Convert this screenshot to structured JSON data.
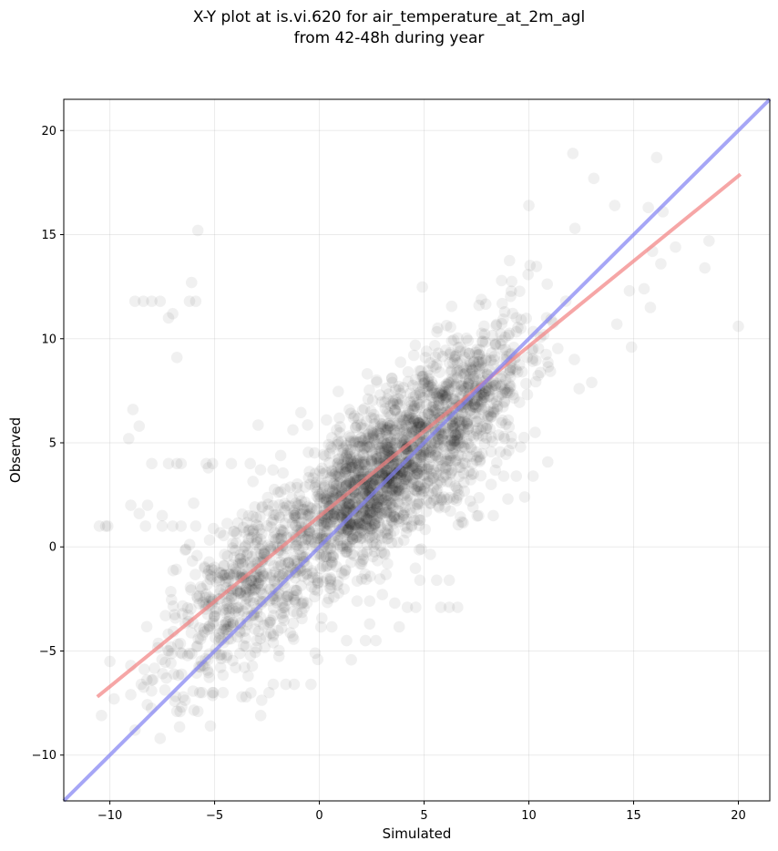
{
  "title_line1": "X-Y plot at is.vi.620 for air_temperature_at_2m_agl",
  "title_line2": "from 42-48h during year",
  "chart_data": {
    "type": "scatter",
    "xlabel": "Simulated",
    "ylabel": "Observed",
    "xlim": [
      -12.2,
      21.5
    ],
    "ylim": [
      -12.2,
      21.5
    ],
    "xticks": [
      -10,
      -5,
      0,
      5,
      10,
      15,
      20
    ],
    "yticks": [
      -10,
      -5,
      0,
      5,
      10,
      15,
      20
    ],
    "xtick_labels": [
      "−10",
      "−5",
      "0",
      "5",
      "10",
      "15",
      "20"
    ],
    "ytick_labels": [
      "−10",
      "−5",
      "0",
      "5",
      "10",
      "15",
      "20"
    ],
    "grid": true,
    "point_color": "#000000",
    "point_alpha": 0.06,
    "outlier_points": [
      {
        "x": -8.8,
        "y": 11.8
      },
      {
        "x": -8.4,
        "y": 11.8
      },
      {
        "x": -8.0,
        "y": 11.8
      },
      {
        "x": -7.6,
        "y": 11.8
      },
      {
        "x": -6.2,
        "y": 11.8
      },
      {
        "x": -5.9,
        "y": 11.8
      },
      {
        "x": -7.2,
        "y": 11.0
      },
      {
        "x": -7.0,
        "y": 11.2
      },
      {
        "x": -6.8,
        "y": 9.1
      },
      {
        "x": -6.1,
        "y": 12.7
      },
      {
        "x": -5.8,
        "y": 15.2
      },
      {
        "x": -8.9,
        "y": 6.6
      },
      {
        "x": -8.6,
        "y": 5.8
      },
      {
        "x": -9.1,
        "y": 5.2
      },
      {
        "x": -10.5,
        "y": 1.0
      },
      {
        "x": -10.2,
        "y": 1.0
      },
      {
        "x": -10.1,
        "y": 1.0
      },
      {
        "x": -8.3,
        "y": 1.0
      },
      {
        "x": -7.5,
        "y": 1.0
      },
      {
        "x": -7.0,
        "y": 1.0
      },
      {
        "x": -6.6,
        "y": 1.0
      },
      {
        "x": -5.9,
        "y": 1.0
      },
      {
        "x": -9.0,
        "y": 2.0
      },
      {
        "x": -8.6,
        "y": 1.6
      },
      {
        "x": -8.2,
        "y": 2.0
      },
      {
        "x": -7.5,
        "y": 1.5
      },
      {
        "x": -6.0,
        "y": 2.1
      },
      {
        "x": -8.0,
        "y": 4.0
      },
      {
        "x": -7.2,
        "y": 4.0
      },
      {
        "x": -6.6,
        "y": 4.0
      },
      {
        "x": -5.4,
        "y": 4.0
      },
      {
        "x": -5.1,
        "y": 4.0
      },
      {
        "x": -4.2,
        "y": 4.0
      },
      {
        "x": -3.3,
        "y": 4.0
      },
      {
        "x": -5.3,
        "y": 3.8
      },
      {
        "x": -6.8,
        "y": 4.0
      },
      {
        "x": 12.1,
        "y": 18.9
      },
      {
        "x": 16.1,
        "y": 18.7
      },
      {
        "x": 13.1,
        "y": 17.7
      },
      {
        "x": 15.7,
        "y": 16.3
      },
      {
        "x": 14.1,
        "y": 16.4
      },
      {
        "x": 10.0,
        "y": 16.4
      },
      {
        "x": 16.4,
        "y": 16.1
      },
      {
        "x": 12.2,
        "y": 15.3
      },
      {
        "x": 17.0,
        "y": 14.4
      },
      {
        "x": 15.9,
        "y": 14.2
      },
      {
        "x": 18.6,
        "y": 14.7
      },
      {
        "x": 18.4,
        "y": 13.4
      },
      {
        "x": 16.3,
        "y": 13.6
      },
      {
        "x": 15.5,
        "y": 12.4
      },
      {
        "x": 14.8,
        "y": 12.3
      },
      {
        "x": 15.8,
        "y": 11.5
      },
      {
        "x": 20.0,
        "y": 10.6
      },
      {
        "x": 14.9,
        "y": 9.6
      },
      {
        "x": 14.2,
        "y": 10.7
      },
      {
        "x": 13.0,
        "y": 7.9
      },
      {
        "x": 12.4,
        "y": 7.6
      },
      {
        "x": 10.2,
        "y": 3.4
      },
      {
        "x": 9.4,
        "y": 3.4
      },
      {
        "x": 8.8,
        "y": 3.4
      },
      {
        "x": 8.2,
        "y": 3.0
      },
      {
        "x": 9.6,
        "y": 4.8
      },
      {
        "x": 10.3,
        "y": 5.5
      },
      {
        "x": 9.0,
        "y": 2.3
      },
      {
        "x": 9.8,
        "y": 2.4
      },
      {
        "x": 8.3,
        "y": 1.5
      },
      {
        "x": 7.6,
        "y": 1.5
      },
      {
        "x": 7.2,
        "y": 2.2
      },
      {
        "x": 6.9,
        "y": 3.1
      },
      {
        "x": 5.6,
        "y": 2.3
      },
      {
        "x": 6.4,
        "y": 2.3
      },
      {
        "x": 6.8,
        "y": 1.2
      },
      {
        "x": 4.2,
        "y": -2.9
      },
      {
        "x": 4.6,
        "y": -2.9
      },
      {
        "x": 5.8,
        "y": -2.9
      },
      {
        "x": 6.2,
        "y": -2.9
      },
      {
        "x": 6.6,
        "y": -2.9
      },
      {
        "x": 3.6,
        "y": -2.7
      },
      {
        "x": 4.8,
        "y": -1.6
      },
      {
        "x": 5.6,
        "y": -1.6
      },
      {
        "x": 6.2,
        "y": -1.6
      },
      {
        "x": 2.4,
        "y": -2.6
      },
      {
        "x": 1.8,
        "y": -2.6
      },
      {
        "x": 2.7,
        "y": -4.5
      },
      {
        "x": 2.2,
        "y": -4.5
      },
      {
        "x": 1.3,
        "y": -4.5
      },
      {
        "x": 2.4,
        "y": -3.7
      },
      {
        "x": -0.4,
        "y": -6.6
      },
      {
        "x": -1.2,
        "y": -6.6
      },
      {
        "x": -1.6,
        "y": -6.6
      },
      {
        "x": -2.2,
        "y": -6.6
      },
      {
        "x": -2.4,
        "y": -7.0
      },
      {
        "x": -3.5,
        "y": -7.2
      },
      {
        "x": -3.7,
        "y": -7.2
      },
      {
        "x": -4.6,
        "y": -7.0
      },
      {
        "x": -5.1,
        "y": -7.0
      },
      {
        "x": -5.6,
        "y": -7.0
      },
      {
        "x": -5.8,
        "y": -7.9
      },
      {
        "x": -5.2,
        "y": -8.6
      },
      {
        "x": -6.8,
        "y": -7.9
      },
      {
        "x": -7.6,
        "y": -9.2
      },
      {
        "x": -8.8,
        "y": -8.8
      },
      {
        "x": -10.4,
        "y": -8.1
      },
      {
        "x": -9.8,
        "y": -7.3
      },
      {
        "x": -9.0,
        "y": -7.1
      },
      {
        "x": -10.0,
        "y": -5.5
      },
      {
        "x": -9.0,
        "y": -5.7
      },
      {
        "x": -8.5,
        "y": -6.6
      },
      {
        "x": -8.0,
        "y": -6.4
      },
      {
        "x": -7.3,
        "y": -6.3
      },
      {
        "x": -6.5,
        "y": -7.2
      },
      {
        "x": -2.8,
        "y": -8.1
      },
      {
        "x": -1.5,
        "y": -2.4
      },
      {
        "x": -0.2,
        "y": -5.1
      },
      {
        "x": -4.4,
        "y": -5.2
      },
      {
        "x": -4.0,
        "y": -5.8
      },
      {
        "x": -3.4,
        "y": -6.2
      },
      {
        "x": -3.0,
        "y": -4.5
      },
      {
        "x": -2.2,
        "y": -4.6
      },
      {
        "x": -1.8,
        "y": -3.9
      }
    ],
    "series": [
      {
        "type": "line",
        "color": "#f28080",
        "alpha": 0.7,
        "x": [
          -10.6,
          20.1
        ],
        "y": [
          -7.2,
          17.9
        ]
      },
      {
        "type": "line",
        "color": "#8080f2",
        "alpha": 0.7,
        "x": [
          -12.2,
          21.5
        ],
        "y": [
          -12.2,
          21.5
        ]
      }
    ]
  }
}
